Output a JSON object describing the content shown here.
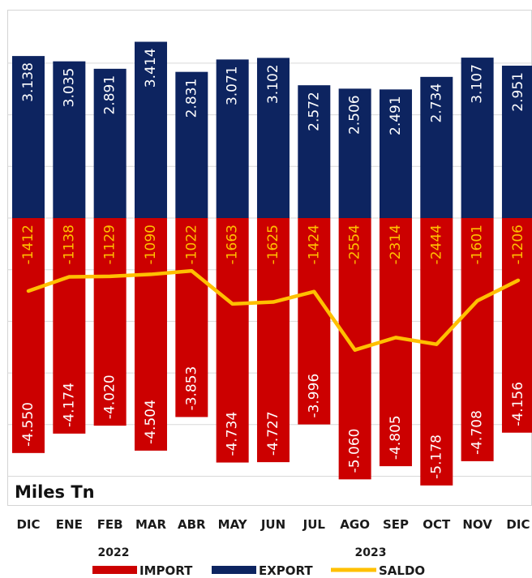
{
  "chart_data": {
    "type": "bar",
    "categories": [
      "DIC",
      "ENE",
      "FEB",
      "MAR",
      "ABR",
      "MAY",
      "JUN",
      "JUL",
      "AGO",
      "SEP",
      "OCT",
      "NOV",
      "DIC"
    ],
    "value_labels": {
      "export": [
        "3.138",
        "3.035",
        "2.891",
        "3.414",
        "2.831",
        "3.071",
        "3.102",
        "2.572",
        "2.506",
        "2.491",
        "2.734",
        "3.107",
        "2.951"
      ],
      "import": [
        "-4.550",
        "-4.174",
        "-4.020",
        "-4.504",
        "-3.853",
        "-4.734",
        "-4.727",
        "-3.996",
        "-5.060",
        "-4.805",
        "-5.178",
        "-4.708",
        "-4.156"
      ],
      "saldo": [
        "-1412",
        "-1138",
        "-1129",
        "-1090",
        "-1022",
        "-1663",
        "-1625",
        "-1424",
        "-2554",
        "-2314",
        "-2444",
        "-1601",
        "-1206"
      ]
    },
    "series": [
      {
        "name": "IMPORT",
        "kind": "bar",
        "color": "#cc0000",
        "values": [
          -4550,
          -4174,
          -4020,
          -4504,
          -3853,
          -4734,
          -4727,
          -3996,
          -5060,
          -4805,
          -5178,
          -4708,
          -4156
        ]
      },
      {
        "name": "EXPORT",
        "kind": "bar",
        "color": "#0d2460",
        "values": [
          3138,
          3035,
          2891,
          3414,
          2831,
          3071,
          3102,
          2572,
          2506,
          2491,
          2734,
          3107,
          2951
        ]
      },
      {
        "name": "SALDO",
        "kind": "line",
        "color": "#ffc000",
        "values": [
          -1412,
          -1138,
          -1129,
          -1090,
          -1022,
          -1663,
          -1625,
          -1424,
          -2554,
          -2314,
          -2444,
          -1601,
          -1206
        ]
      }
    ],
    "year_labels": [
      "2022",
      "2023"
    ],
    "unit_label": "Miles Tn",
    "ylim": [
      -5500,
      3600
    ],
    "grid": true,
    "legend_position": "bottom"
  }
}
